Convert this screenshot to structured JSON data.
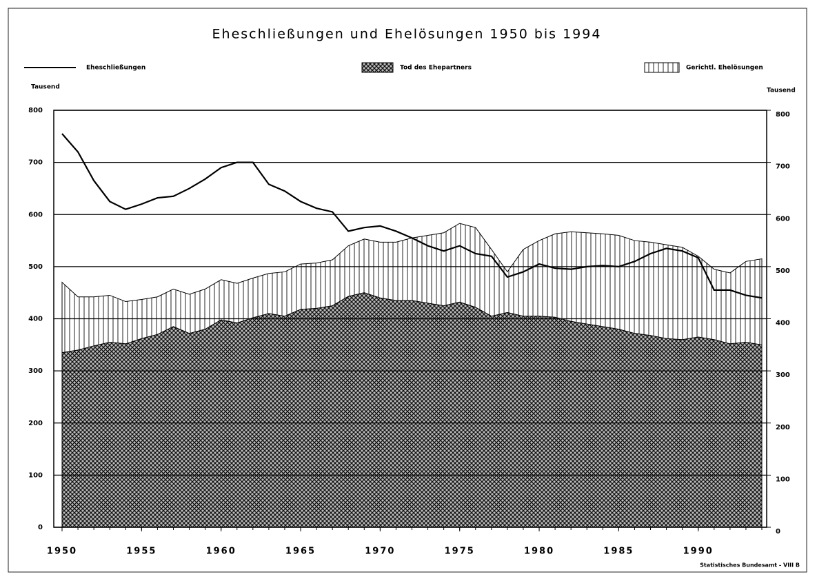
{
  "chart_data": {
    "type": "stacked-area-line",
    "title": "Eheschließungen und Ehelösungen 1950 bis 1994",
    "ylabel": "Tausend",
    "y2label": "Tausend",
    "source": "Statistisches Bundesamt - VIII B",
    "x": [
      1950,
      1951,
      1952,
      1953,
      1954,
      1955,
      1956,
      1957,
      1958,
      1959,
      1960,
      1961,
      1962,
      1963,
      1964,
      1965,
      1966,
      1967,
      1968,
      1969,
      1970,
      1971,
      1972,
      1973,
      1974,
      1975,
      1976,
      1977,
      1978,
      1979,
      1980,
      1981,
      1982,
      1983,
      1984,
      1985,
      1986,
      1987,
      1988,
      1989,
      1990,
      1991,
      1992,
      1993,
      1994
    ],
    "xlim": [
      1950,
      1994
    ],
    "xticks": [
      1950,
      1955,
      1960,
      1965,
      1970,
      1975,
      1980,
      1985,
      1990
    ],
    "ylim": [
      0,
      800
    ],
    "yticks": [
      0,
      100,
      200,
      300,
      400,
      500,
      600,
      700,
      800
    ],
    "y2lim": [
      0,
      800
    ],
    "y2ticks": [
      0,
      100,
      200,
      300,
      400,
      500,
      600,
      700,
      800
    ],
    "grid": true,
    "series": [
      {
        "name": "Eheschließungen",
        "kind": "line",
        "color": "#000000",
        "values": [
          755,
          720,
          665,
          625,
          610,
          620,
          632,
          635,
          650,
          668,
          690,
          700,
          700,
          658,
          645,
          625,
          612,
          605,
          568,
          575,
          578,
          568,
          555,
          540,
          530,
          540,
          525,
          520,
          480,
          490,
          505,
          497,
          495,
          500,
          502,
          500,
          510,
          525,
          535,
          530,
          517,
          455,
          455,
          445,
          440
        ]
      },
      {
        "name": "Tod des Ehepartners",
        "kind": "area",
        "pattern": "crosshatch",
        "color": "#000000",
        "values": [
          335,
          340,
          348,
          355,
          352,
          362,
          370,
          385,
          372,
          380,
          398,
          392,
          402,
          410,
          405,
          418,
          420,
          425,
          443,
          450,
          440,
          435,
          435,
          430,
          425,
          432,
          422,
          405,
          412,
          405,
          405,
          403,
          395,
          390,
          385,
          380,
          372,
          368,
          362,
          360,
          365,
          360,
          352,
          355,
          350
        ]
      },
      {
        "name": "Gerichtl. Ehelösungen",
        "kind": "area",
        "pattern": "vertical",
        "stacked": true,
        "color": "#000000",
        "values": [
          135,
          102,
          94,
          90,
          81,
          75,
          72,
          72,
          75,
          77,
          77,
          76,
          76,
          77,
          85,
          87,
          87,
          88,
          97,
          103,
          107,
          112,
          120,
          130,
          140,
          151,
          153,
          128,
          78,
          128,
          145,
          160,
          172,
          175,
          178,
          180,
          178,
          179,
          180,
          177,
          155,
          135,
          136,
          155,
          165
        ]
      }
    ]
  }
}
